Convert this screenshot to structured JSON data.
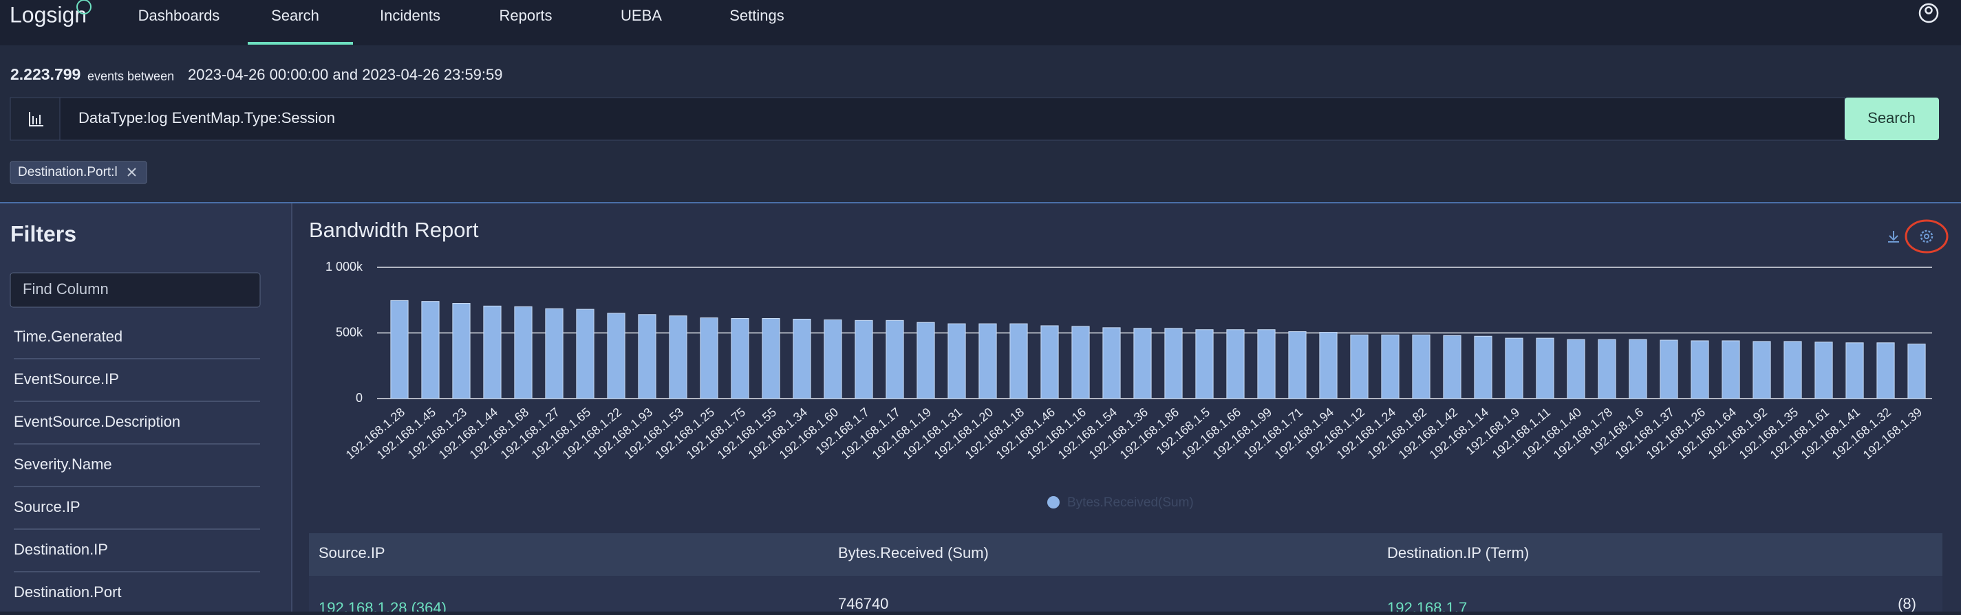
{
  "nav": {
    "logo": "Logsign",
    "items": [
      "Dashboards",
      "Search",
      "Incidents",
      "Reports",
      "UEBA",
      "Settings"
    ],
    "active": 1
  },
  "header": {
    "count": "2.223.799",
    "between": "events between",
    "range": "2023-04-26 00:00:00 and 2023-04-26 23:59:59",
    "query": "DataType:log EventMap.Type:Session",
    "search_button": "Search",
    "chip": "Destination.Port:l"
  },
  "filters": {
    "title": "Filters",
    "placeholder": "Find Column",
    "items": [
      "Time.Generated",
      "EventSource.IP",
      "EventSource.Description",
      "Severity.Name",
      "Source.IP",
      "Destination.IP",
      "Destination.Port"
    ]
  },
  "chart_data": {
    "type": "bar",
    "title": "Bandwidth Report",
    "categories": [
      "192.168.1.28",
      "192.168.1.45",
      "192.168.1.23",
      "192.168.1.44",
      "192.168.1.68",
      "192.168.1.27",
      "192.168.1.65",
      "192.168.1.22",
      "192.168.1.93",
      "192.168.1.53",
      "192.168.1.25",
      "192.168.1.75",
      "192.168.1.55",
      "192.168.1.34",
      "192.168.1.60",
      "192.168.1.7",
      "192.168.1.17",
      "192.168.1.19",
      "192.168.1.31",
      "192.168.1.20",
      "192.168.1.18",
      "192.168.1.46",
      "192.168.1.16",
      "192.168.1.54",
      "192.168.1.36",
      "192.168.1.86",
      "192.168.1.5",
      "192.168.1.66",
      "192.168.1.99",
      "192.168.1.71",
      "192.168.1.94",
      "192.168.1.12",
      "192.168.1.24",
      "192.168.1.82",
      "192.168.1.42",
      "192.168.1.14",
      "192.168.1.9",
      "192.168.1.11",
      "192.168.1.40",
      "192.168.1.78",
      "192.168.1.6",
      "192.168.1.37",
      "192.168.1.26",
      "192.168.1.64",
      "192.168.1.92",
      "192.168.1.35",
      "192.168.1.61",
      "192.168.1.41",
      "192.168.1.32",
      "192.168.1.39"
    ],
    "series": [
      {
        "name": "Bytes.Received(Sum)",
        "color": "#8fb5e8",
        "values": [
          746740,
          740000,
          725000,
          705000,
          700000,
          685000,
          680000,
          650000,
          640000,
          630000,
          615000,
          610000,
          610000,
          605000,
          600000,
          595000,
          595000,
          580000,
          570000,
          570000,
          570000,
          555000,
          550000,
          540000,
          535000,
          535000,
          525000,
          525000,
          525000,
          510000,
          505000,
          485000,
          485000,
          485000,
          480000,
          475000,
          460000,
          460000,
          450000,
          450000,
          450000,
          445000,
          440000,
          440000,
          435000,
          435000,
          430000,
          425000,
          425000,
          415000
        ]
      }
    ],
    "ylim": [
      0,
      1000000
    ],
    "yticks": [
      0,
      {
        "value": 500000,
        "label": "500k"
      },
      {
        "value": 1000000,
        "label": "1 000k"
      }
    ],
    "grid": true
  },
  "table": {
    "columns": [
      "Source.IP",
      "Bytes.Received (Sum)",
      "Destination.IP (Term)"
    ],
    "rows": [
      [
        "192.168.1.28 (364)",
        746740,
        "192.168.1.7",
        "(8)"
      ]
    ]
  }
}
